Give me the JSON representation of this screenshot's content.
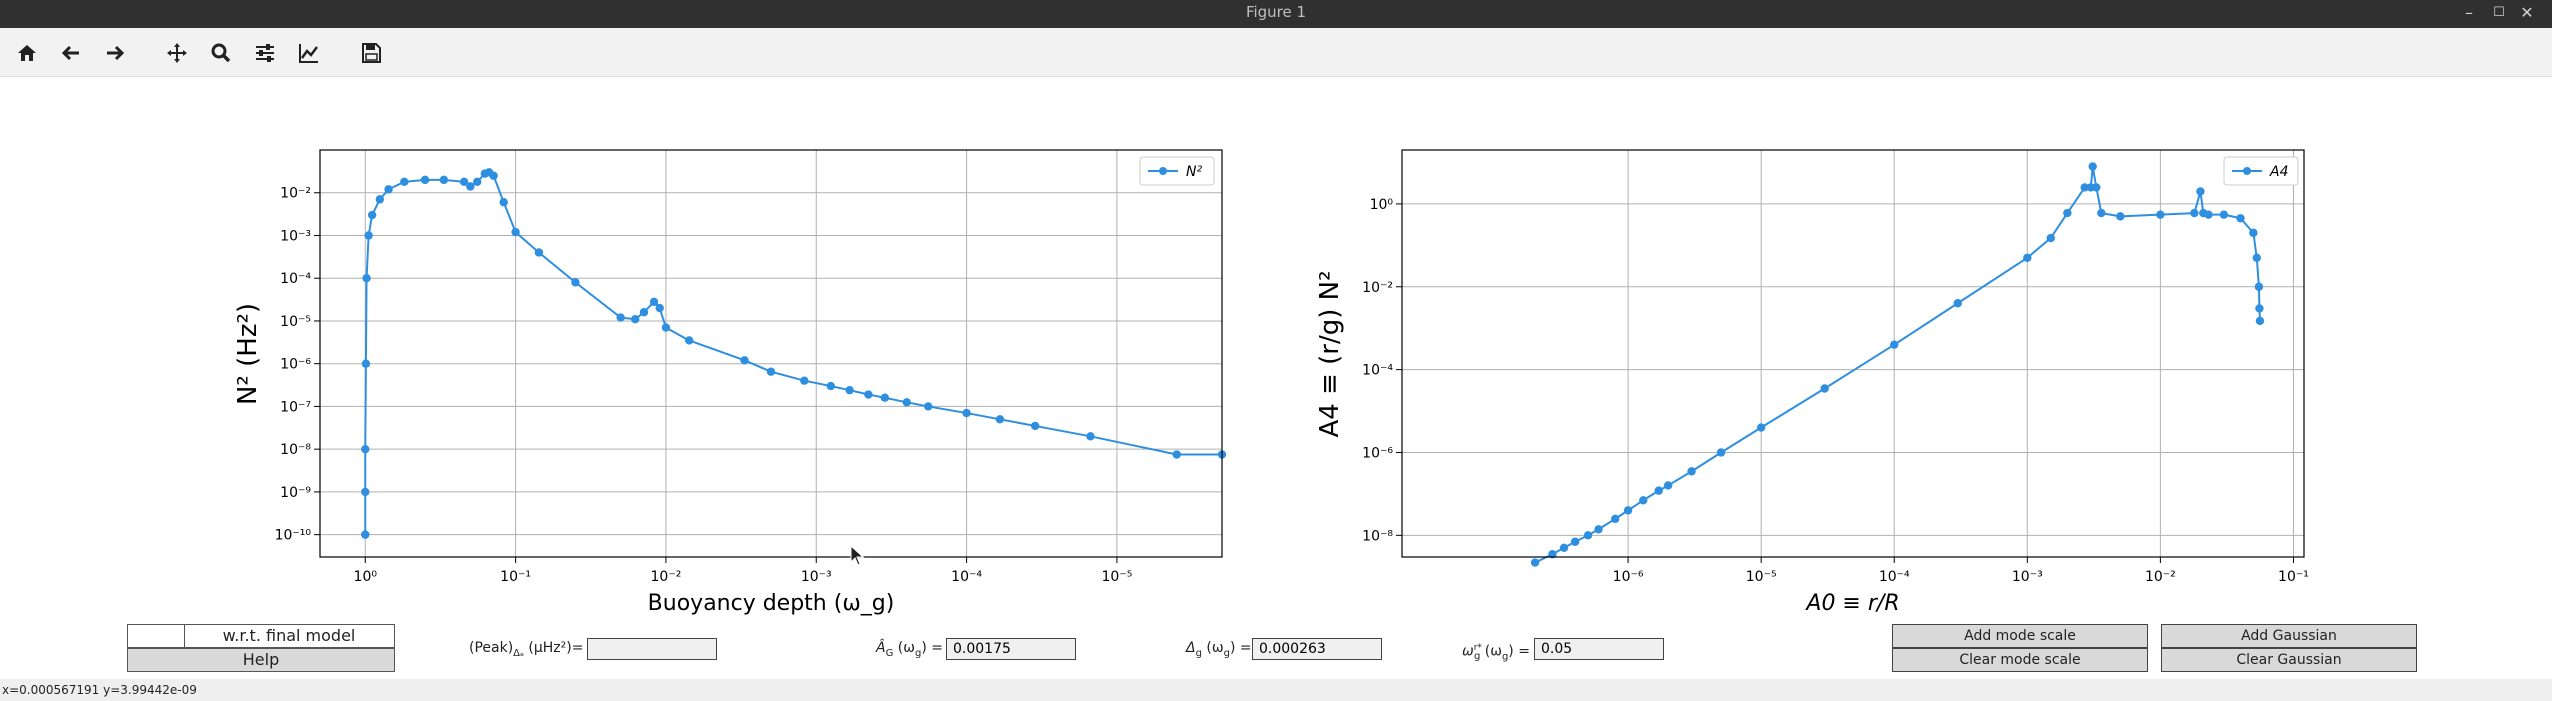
{
  "window": {
    "title": "Figure 1"
  },
  "toolbar": {
    "buttons": [
      {
        "name": "home-button",
        "icon": "home-icon"
      },
      {
        "name": "back-button",
        "icon": "arrow-left-icon"
      },
      {
        "name": "forward-button",
        "icon": "arrow-right-icon"
      },
      {
        "name": "pan-button",
        "icon": "move-icon"
      },
      {
        "name": "zoom-button",
        "icon": "magnifier-icon"
      },
      {
        "name": "configure-subplots-button",
        "icon": "sliders-icon"
      },
      {
        "name": "edit-axes-button",
        "icon": "line-chart-icon"
      },
      {
        "name": "save-button",
        "icon": "floppy-disk-icon"
      }
    ]
  },
  "chart_data": [
    {
      "type": "line",
      "xlabel": "Buoyancy depth (ω_g)",
      "ylabel": "N² (Hz²)",
      "x_scale": "log",
      "x_inverted": true,
      "xlim": [
        2,
        2e-06
      ],
      "y_scale": "log",
      "ylim": [
        3e-11,
        0.1
      ],
      "x_ticks": [
        "10⁰",
        "10⁻¹",
        "10⁻²",
        "10⁻³",
        "10⁻⁴",
        "10⁻⁵"
      ],
      "y_ticks": [
        "10⁻¹⁰",
        "10⁻⁹",
        "10⁻⁸",
        "10⁻⁷",
        "10⁻⁶",
        "10⁻⁵",
        "10⁻⁴",
        "10⁻³",
        "10⁻²"
      ],
      "grid": true,
      "legend": "top-right",
      "color": "#2e8fe0",
      "series": [
        {
          "name": "N²",
          "x": [
            1.0,
            1.0,
            1.0,
            0.99,
            0.98,
            0.95,
            0.9,
            0.8,
            0.7,
            0.55,
            0.4,
            0.3,
            0.22,
            0.2,
            0.18,
            0.16,
            0.15,
            0.14,
            0.12,
            0.1,
            0.07,
            0.04,
            0.02,
            0.016,
            0.014,
            0.012,
            0.011,
            0.01,
            0.007,
            0.003,
            0.002,
            0.0012,
            0.0008,
            0.0006,
            0.00045,
            0.00035,
            0.00025,
            0.00018,
            0.0001,
            6e-05,
            3.5e-05,
            1.5e-05,
            4e-06,
            2e-06
          ],
          "y": [
            1e-10,
            1e-09,
            1e-08,
            1e-06,
            0.0001,
            0.001,
            0.003,
            0.007,
            0.012,
            0.018,
            0.02,
            0.02,
            0.018,
            0.014,
            0.018,
            0.028,
            0.03,
            0.025,
            0.006,
            0.0012,
            0.0004,
            8e-05,
            1.2e-05,
            1.1e-05,
            1.6e-05,
            2.8e-05,
            2e-05,
            7e-06,
            3.5e-06,
            1.2e-06,
            6.5e-07,
            4e-07,
            3e-07,
            2.4e-07,
            1.9e-07,
            1.6e-07,
            1.25e-07,
            1e-07,
            7e-08,
            5e-08,
            3.5e-08,
            2e-08,
            7.5e-09,
            7.5e-09
          ]
        }
      ]
    },
    {
      "type": "line",
      "xlabel": "A0 ≡ r/R",
      "ylabel": "A4 ≡ (r/g) N²",
      "x_scale": "log",
      "xlim": [
        2e-08,
        0.12
      ],
      "y_scale": "log",
      "ylim": [
        3e-09,
        20
      ],
      "x_ticks": [
        "10⁻⁶",
        "10⁻⁵",
        "10⁻⁴",
        "10⁻³",
        "10⁻²",
        "10⁻¹"
      ],
      "y_ticks": [
        "10⁻⁸",
        "10⁻⁶",
        "10⁻⁴",
        "10⁻²",
        "10⁰"
      ],
      "grid": true,
      "legend": "top-right",
      "color": "#2e8fe0",
      "series": [
        {
          "name": "A4",
          "x": [
            2e-07,
            2.7e-07,
            3.3e-07,
            4e-07,
            5e-07,
            6e-07,
            8e-07,
            1e-06,
            1.3e-06,
            1.7e-06,
            2e-06,
            3e-06,
            5e-06,
            1e-05,
            3e-05,
            0.0001,
            0.0003,
            0.001,
            0.0015,
            0.002,
            0.0027,
            0.003,
            0.0031,
            0.0033,
            0.0036,
            0.005,
            0.01,
            0.018,
            0.02,
            0.021,
            0.023,
            0.03,
            0.04,
            0.05,
            0.053,
            0.055,
            0.0555,
            0.056
          ],
          "y": [
            2.2e-09,
            3.5e-09,
            5e-09,
            7e-09,
            1e-08,
            1.4e-08,
            2.5e-08,
            4e-08,
            7e-08,
            1.2e-07,
            1.6e-07,
            3.5e-07,
            1e-06,
            4e-06,
            3.5e-05,
            0.0004,
            0.004,
            0.05,
            0.15,
            0.6,
            2.5,
            2.5,
            8,
            2.5,
            0.6,
            0.5,
            0.55,
            0.6,
            2,
            0.6,
            0.55,
            0.55,
            0.45,
            0.2,
            0.05,
            0.01,
            0.003,
            0.0015
          ]
        }
      ]
    }
  ],
  "controls": {
    "check_label": "w.r.t. final model",
    "help_label": "Help",
    "peak": {
      "label": "(Peak)",
      "sub": "Δₐ",
      "unit": " (μHz²)=",
      "value": ""
    },
    "ag": {
      "label": "Â",
      "sub": "G",
      "unit": " (ω",
      "unit_sub": "g",
      "unit_end": ") =",
      "value": "0.00175"
    },
    "dg": {
      "label": "Δ",
      "sub": "g",
      "unit": " (ω",
      "unit_sub": "g",
      "unit_end": ") =",
      "value": "0.000263"
    },
    "wg": {
      "label": "ω",
      "sub": "g",
      "sup": "r*",
      "unit": " (ω",
      "unit_sub": "g",
      "unit_end": ") =",
      "value": "0.05"
    },
    "add_mode_scale": "Add mode scale",
    "clear_mode_scale": "Clear mode scale",
    "add_gaussian": "Add Gaussian",
    "clear_gaussian": "Clear Gaussian"
  },
  "status": {
    "text": "x=0.000567191  y=3.99442e-09"
  }
}
